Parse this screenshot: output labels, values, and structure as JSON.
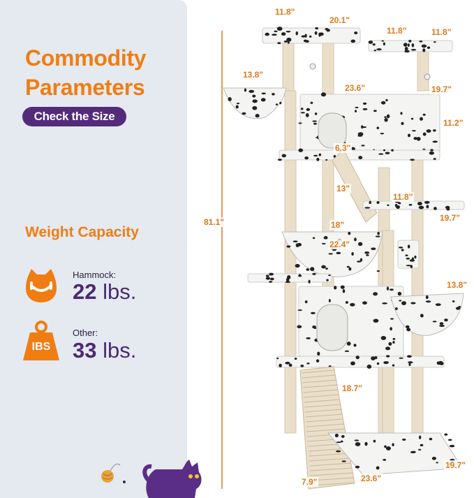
{
  "panel": {
    "title_line1": "Commodity",
    "title_line2": "Parameters",
    "check_button": "Check the Size",
    "weight_heading": "Weight Capacity",
    "hammock_label": "Hammock:",
    "hammock_value": "22",
    "hammock_unit": "lbs.",
    "other_label": "Other:",
    "other_value": "33",
    "other_unit": "lbs.",
    "weight_icon_text": "IBS"
  },
  "dimensions": {
    "top_left_perch_w": "11.8\"",
    "top_left_perch_d": "20.1\"",
    "top_right_perch_w": "11.8\"",
    "top_right_perch_d": "11.8\"",
    "top_hammock": "13.8\"",
    "condo_width": "23.6\"",
    "condo_depth": "19.7\"",
    "condo_height": "11.2\"",
    "ladder_width": "6.3\"",
    "ladder_length": "13\"",
    "mid_perch_w": "11.8\"",
    "mid_perch_d": "19.7\"",
    "total_height": "81.1\"",
    "mid_hammock_w": "18\"",
    "mid_hammock_d": "22.4\"",
    "lower_hammock": "13.8\"",
    "ramp_length": "18.7\"",
    "base_depth": "19.7\"",
    "ramp_width": "7.9\"",
    "base_width": "23.6\""
  },
  "colors": {
    "accent_orange": "#f07d12",
    "brand_purple": "#532b7a",
    "panel_bg": "#e5eaf1"
  }
}
